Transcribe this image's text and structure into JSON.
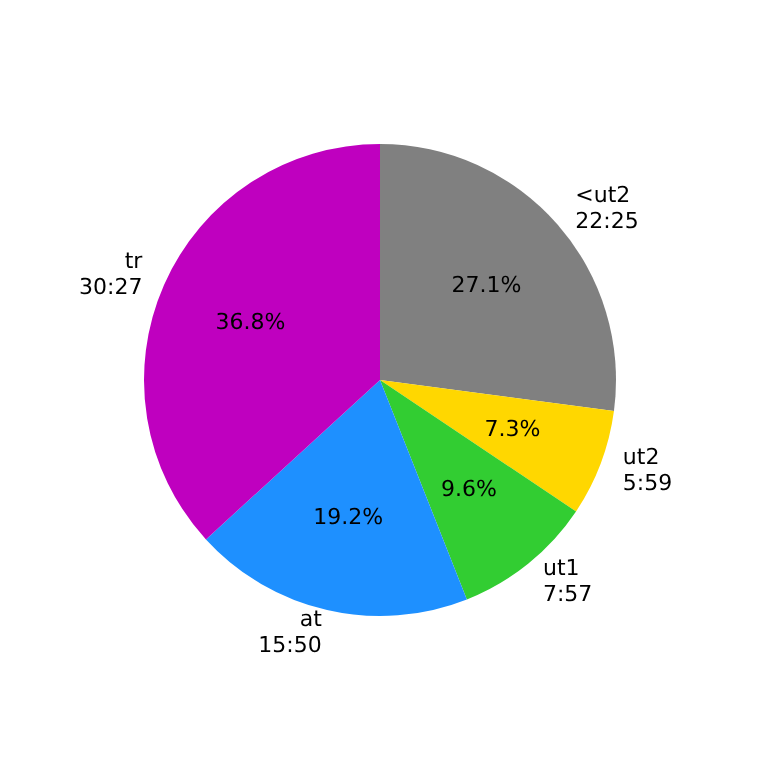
{
  "chart_data": {
    "type": "pie",
    "categories": [
      "<ut2\n22:25",
      "ut2\n5:59",
      "ut1\n7:57",
      "at\n15:50",
      "tr\n30:27"
    ],
    "values": [
      27.1,
      7.3,
      9.6,
      19.2,
      36.8
    ],
    "colors": [
      "#808080",
      "#ffd700",
      "#32cd32",
      "#1e90ff",
      "#bf00bf"
    ],
    "value_labels": [
      "27.1%",
      "7.3%",
      "9.6%",
      "19.2%",
      "36.8%"
    ]
  }
}
